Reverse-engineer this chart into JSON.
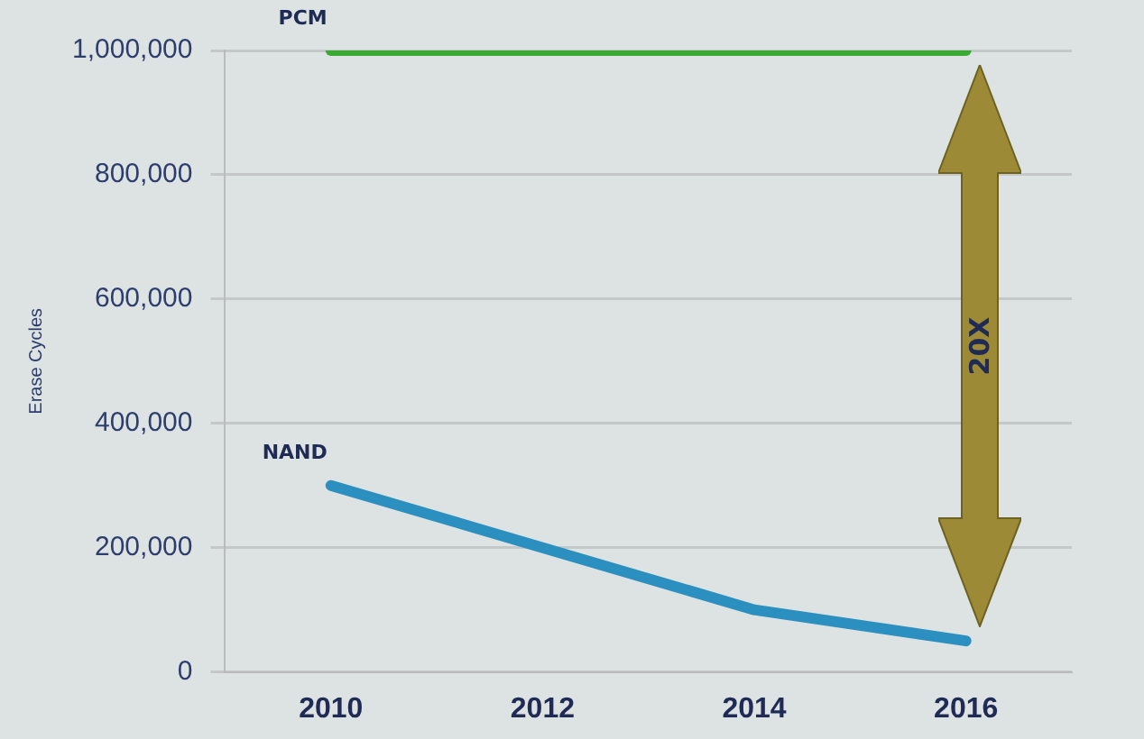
{
  "chart_data": {
    "type": "line",
    "ylabel": "Erase Cycles",
    "categories": [
      "2010",
      "2012",
      "2014",
      "2016"
    ],
    "series": [
      {
        "name": "PCM",
        "color": "#3aaa35",
        "values": [
          1000000,
          1000000,
          1000000,
          1000000
        ]
      },
      {
        "name": "NAND",
        "color": "#2b8fbf",
        "values": [
          300000,
          200000,
          100000,
          50000
        ]
      }
    ],
    "ylim": [
      0,
      1000000
    ],
    "yticks": [
      0,
      {
        "value": 200000,
        "label": "200,000"
      },
      {
        "value": 400000,
        "label": "400,000"
      },
      {
        "value": 600000,
        "label": "600,000"
      },
      {
        "value": 800000,
        "label": "800,000"
      },
      {
        "value": 1000000,
        "label": "1,000,000"
      }
    ],
    "grid": "y",
    "legend": false,
    "marker": "none",
    "line_style": "solid",
    "annotations": [
      "20X"
    ]
  }
}
